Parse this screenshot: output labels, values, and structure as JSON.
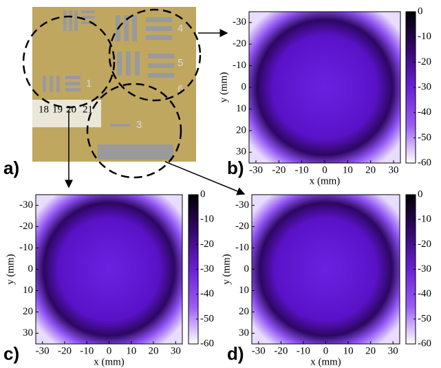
{
  "photo": {
    "panel": "a)",
    "labels": [
      "1",
      "4",
      "5",
      "6",
      "3",
      "18",
      "19",
      "20",
      "21"
    ]
  },
  "chart_data": [
    {
      "type": "heatmap",
      "panel": "b)",
      "x_label": "x (mm)",
      "y_label": "y (mm)",
      "xlim": [
        -33,
        33
      ],
      "ylim": [
        -35,
        35
      ],
      "xticks": [
        -30,
        -20,
        -10,
        0,
        10,
        20,
        30
      ],
      "yticks": [
        -30,
        -20,
        -10,
        0,
        10,
        20,
        30
      ],
      "clim": [
        -60,
        0
      ],
      "cticks": [
        0,
        -10,
        -20,
        -30,
        -40,
        -50,
        -60
      ],
      "colormap": [
        "#ffffff",
        "#9a5cf5",
        "#6a1fd6",
        "#35086e",
        "#000000"
      ]
    },
    {
      "type": "heatmap",
      "panel": "c)",
      "x_label": "x (mm)",
      "y_label": "y (mm)",
      "xlim": [
        -33,
        33
      ],
      "ylim": [
        -35,
        35
      ],
      "xticks": [
        -30,
        -20,
        -10,
        0,
        10,
        20,
        30
      ],
      "yticks": [
        -30,
        -20,
        -10,
        0,
        10,
        20,
        30
      ],
      "clim": [
        -60,
        0
      ],
      "cticks": [
        0,
        -10,
        -20,
        -30,
        -40,
        -50,
        -60
      ],
      "colormap": [
        "#ffffff",
        "#9a5cf5",
        "#6a1fd6",
        "#35086e",
        "#000000"
      ]
    },
    {
      "type": "heatmap",
      "panel": "d)",
      "x_label": "x (mm)",
      "y_label": "y (mm)",
      "xlim": [
        -33,
        33
      ],
      "ylim": [
        -35,
        35
      ],
      "xticks": [
        -30,
        -20,
        -10,
        0,
        10,
        20,
        30
      ],
      "yticks": [
        -30,
        -20,
        -10,
        0,
        10,
        20,
        30
      ],
      "clim": [
        -60,
        0
      ],
      "cticks": [
        0,
        -10,
        -20,
        -30,
        -40,
        -50,
        -60
      ],
      "colormap": [
        "#ffffff",
        "#9a5cf5",
        "#6a1fd6",
        "#35086e",
        "#000000"
      ]
    }
  ]
}
